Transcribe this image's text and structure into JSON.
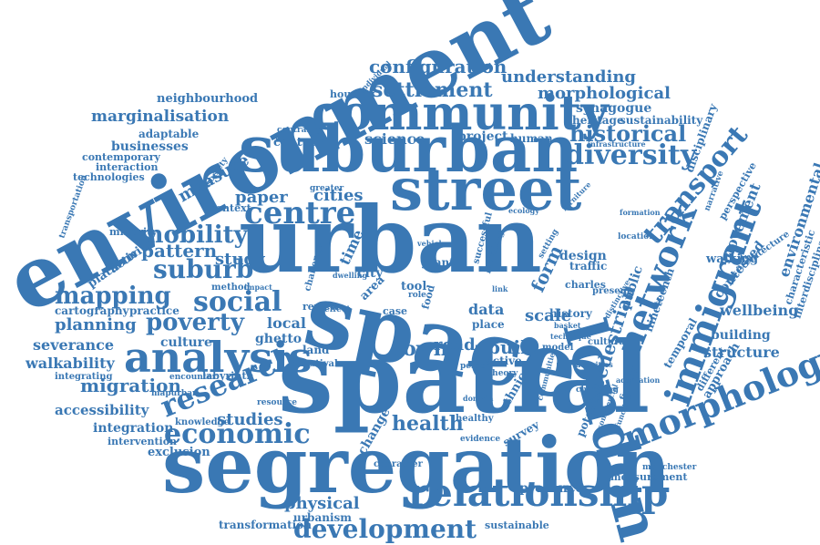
{
  "color": "#3a78b4",
  "words": [
    "environment",
    "segregation",
    "spatial",
    "space",
    "urban",
    "suburban",
    "street",
    "community",
    "london",
    "relationship",
    "morphology",
    "immigrant",
    "network",
    "analysis",
    "development",
    "research",
    "economic",
    "mapping",
    "social",
    "poverty",
    "mobility",
    "suburb",
    "centre",
    "diversity",
    "transport",
    "historical",
    "configuration",
    "settlement",
    "understanding",
    "morphological",
    "synagogue",
    "heritage",
    "sustainability",
    "neighbourhood",
    "marginalisation",
    "adaptable",
    "businesses",
    "contemporary",
    "interaction",
    "technologies",
    "transportation",
    "measure",
    "pattern",
    "study",
    "paper",
    "cities",
    "science",
    "project",
    "human",
    "disciplinary",
    "infrastructure",
    "narrative",
    "perspective",
    "movement",
    "architecture",
    "environmental",
    "characteristic",
    "interdisciplinary",
    "wellbeing",
    "contested",
    "walking",
    "building",
    "structure",
    "approach",
    "different",
    "temporal",
    "nineteenth",
    "pedestrian",
    "public",
    "form",
    "design",
    "traffic",
    "charles",
    "location",
    "formation",
    "present",
    "cultural",
    "history",
    "scale",
    "data",
    "place",
    "built",
    "town",
    "road",
    "grant",
    "tool",
    "city",
    "time",
    "local",
    "ghetto",
    "planning",
    "practice",
    "cartography",
    "platform",
    "activity",
    "minority",
    "severance",
    "culture",
    "walkability",
    "migration",
    "accessibility",
    "integration",
    "intervention",
    "exclusion",
    "integrating",
    "encounter",
    "labyrinth",
    "mapurban",
    "knowledge",
    "studies",
    "resource",
    "land",
    "festival",
    "review",
    "physical",
    "urbanism",
    "transformation",
    "health",
    "change",
    "character",
    "evidence",
    "ethnic",
    "survey",
    "active",
    "theory",
    "person",
    "model",
    "activities",
    "changing",
    "communities",
    "presence",
    "measurement",
    "manchester",
    "sustainable",
    "potential",
    "finding",
    "adaptation",
    "commercial",
    "method",
    "impact",
    "context",
    "century",
    "centrality",
    "greater",
    "society",
    "housing",
    "individual",
    "healthy",
    "domain",
    "setting",
    "providing",
    "successful",
    "vehicle",
    "ecology",
    "furniture",
    "challenge",
    "area",
    "case",
    "food",
    "effect",
    "role",
    "link",
    "basket",
    "technique",
    "distinctive",
    "function",
    "dwelling"
  ]
}
